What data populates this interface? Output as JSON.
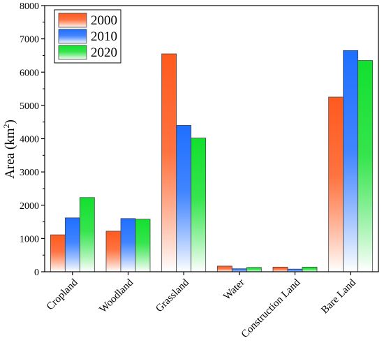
{
  "chart_data": {
    "type": "bar",
    "ylabel": "Area (km²)",
    "ylabel_main": "Area (km",
    "ylabel_sup": "2",
    "ylabel_close": ")",
    "ylim": [
      0,
      8000
    ],
    "yticks": [
      0,
      1000,
      2000,
      3000,
      4000,
      5000,
      6000,
      7000,
      8000
    ],
    "categories": [
      "Cropland",
      "Woodland",
      "Grassland",
      "Water",
      "Construction Land",
      "Bare Land"
    ],
    "series": [
      {
        "name": "2000",
        "color": "#ff5a1e",
        "values": [
          1110,
          1220,
          6550,
          170,
          140,
          5250
        ]
      },
      {
        "name": "2010",
        "color": "#1f6fff",
        "values": [
          1620,
          1600,
          4400,
          90,
          80,
          6650
        ]
      },
      {
        "name": "2020",
        "color": "#12e02e",
        "values": [
          2230,
          1580,
          4020,
          130,
          140,
          6350
        ]
      }
    ],
    "legend_position": "top-left",
    "grid": false
  }
}
